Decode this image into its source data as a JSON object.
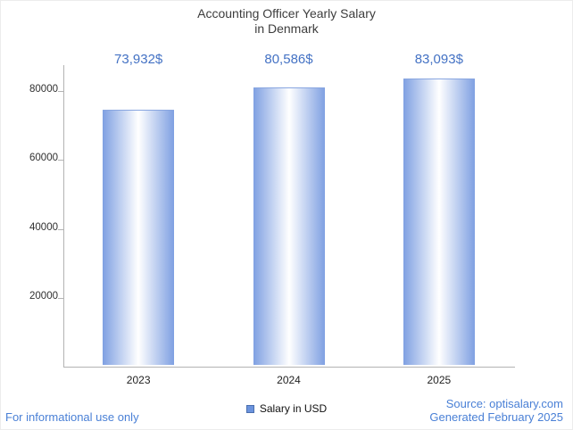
{
  "title": {
    "line1": "Accounting Officer Yearly Salary",
    "line2": "in Denmark"
  },
  "chart_data": {
    "type": "bar",
    "title": "Accounting Officer Yearly Salary in Denmark",
    "categories": [
      "2023",
      "2024",
      "2025"
    ],
    "series": [
      {
        "name": "Salary in USD",
        "values": [
          73932,
          80586,
          83093
        ]
      }
    ],
    "value_labels": [
      "73,932$",
      "80,586$",
      "83,093$"
    ],
    "xlabel": "",
    "ylabel": "",
    "ylim": [
      0,
      88000
    ],
    "yticks": [
      20000,
      40000,
      60000,
      80000
    ],
    "grid": false,
    "legend": {
      "label": "Salary in USD",
      "color": "#6b93dd",
      "position": "bottom"
    },
    "bar_style": {
      "edge_color": "#7fa0e2",
      "center_color": "#ffffff"
    }
  },
  "footer": {
    "disclaimer": "For informational use only",
    "source": "Source: optisalary.com",
    "generated": "Generated February 2025"
  },
  "colors": {
    "accent": "#4472c4",
    "title_text": "#3d3d3d",
    "axis": "#b3b3b3",
    "footer_text": "#4a80d6"
  }
}
